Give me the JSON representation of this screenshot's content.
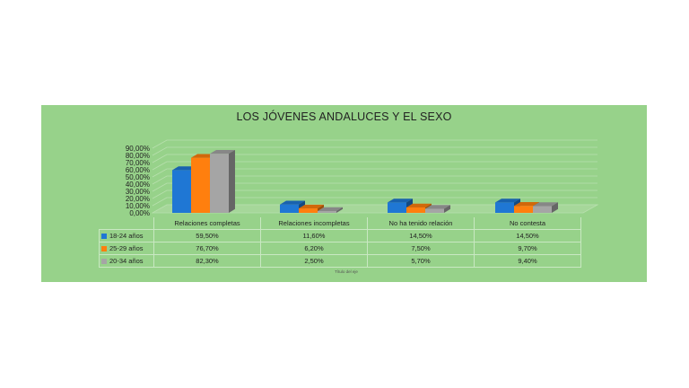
{
  "chart_data": {
    "type": "bar",
    "title": "LOS JÓVENES ANDALUCES Y EL SEXO",
    "xlabel": "Título del eje",
    "ylabel": "",
    "ylim": [
      0,
      90
    ],
    "yticks": [
      "0,00%",
      "10,00%",
      "20,00%",
      "30,00%",
      "40,00%",
      "50,00%",
      "60,00%",
      "70,00%",
      "80,00%",
      "90,00%"
    ],
    "categories": [
      "Relaciones completas",
      "Relaciones incompletas",
      "No ha tenido relación",
      "No contesta"
    ],
    "series": [
      {
        "name": "18-24 años",
        "color": "#1f77d4",
        "values": [
          59.5,
          11.6,
          14.5,
          14.5
        ],
        "labels": [
          "59,50%",
          "11,60%",
          "14,50%",
          "14,50%"
        ]
      },
      {
        "name": "25-29 años",
        "color": "#ff7f0e",
        "values": [
          76.7,
          6.2,
          7.5,
          9.7
        ],
        "labels": [
          "76,70%",
          "6,20%",
          "7,50%",
          "9,70%"
        ]
      },
      {
        "name": "20-34 años",
        "color": "#a5a5a5",
        "values": [
          82.3,
          2.5,
          5.7,
          9.4
        ],
        "labels": [
          "82,30%",
          "2,50%",
          "5,70%",
          "9,40%"
        ]
      }
    ],
    "grid": true,
    "legend": "data-table"
  }
}
